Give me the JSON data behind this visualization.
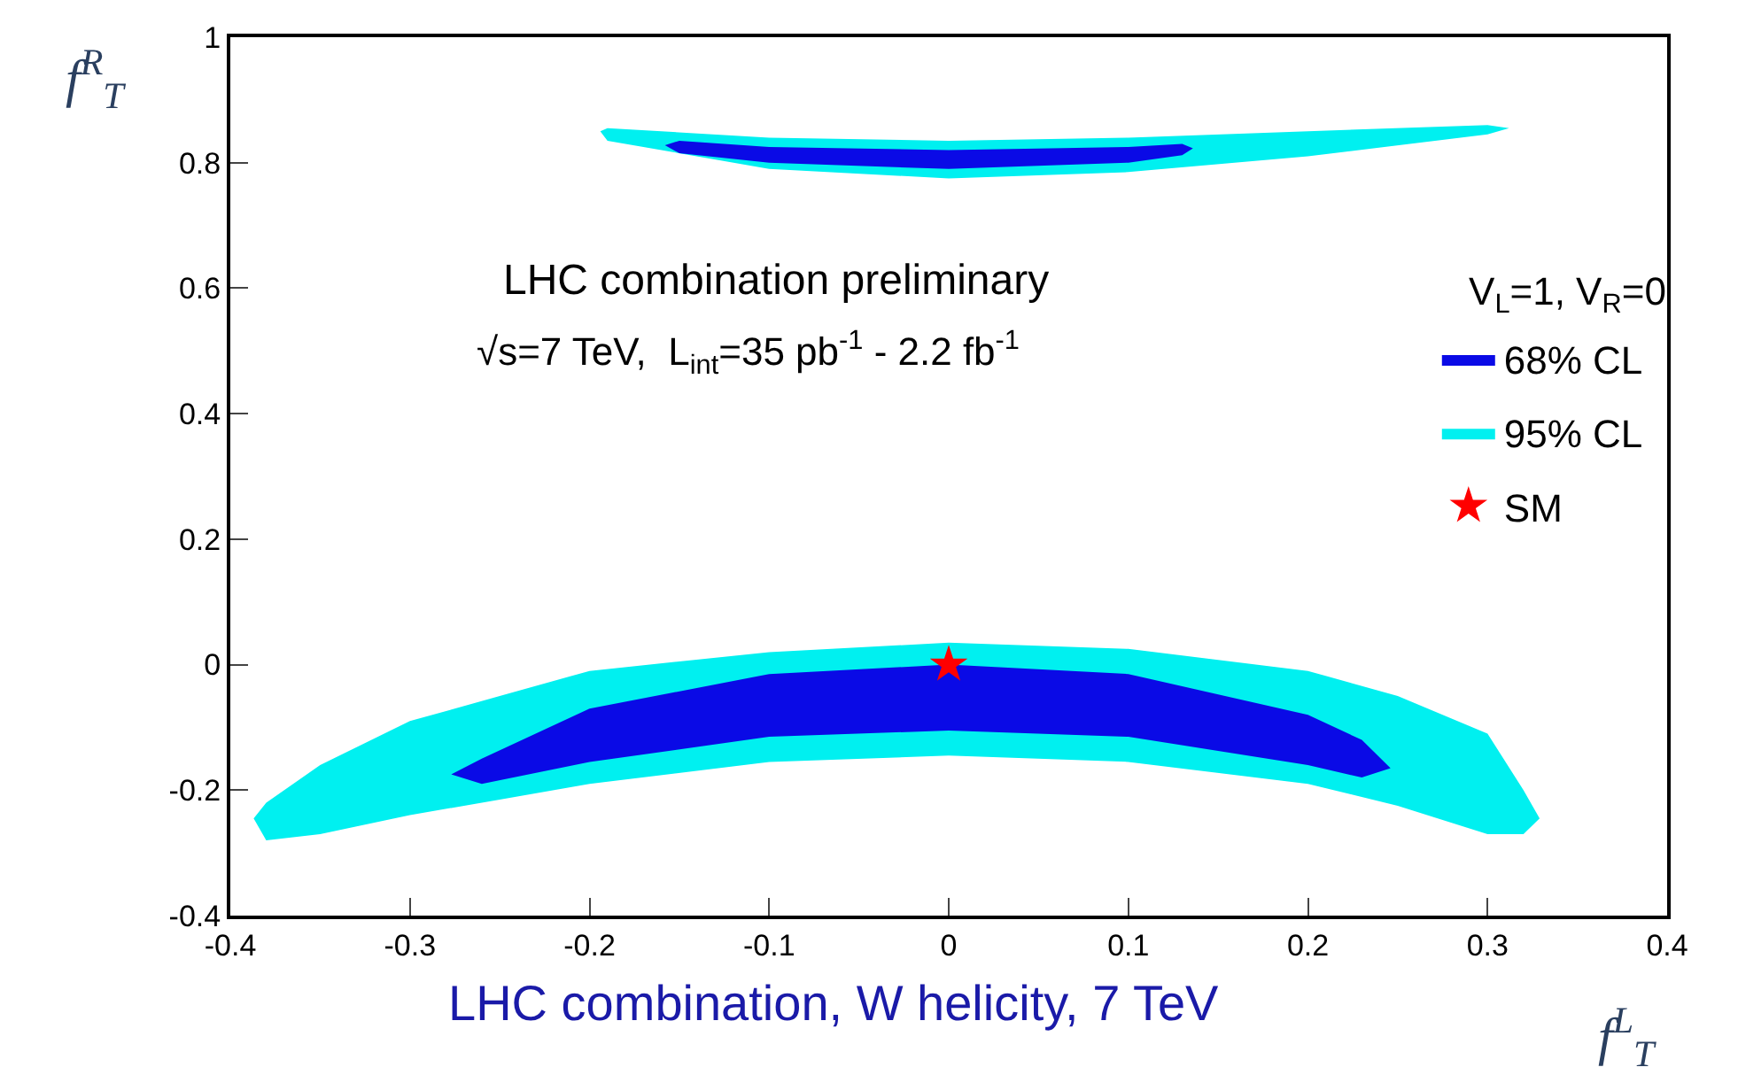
{
  "chart_data": {
    "type": "line",
    "xlabel": "f$^{L}$$_{T}$",
    "ylabel": "f$^{R}$$_{T}$",
    "xlim": [
      -0.4,
      0.4
    ],
    "xticks": [
      -0.4,
      -0.3,
      -0.2,
      -0.1,
      0,
      0.1,
      0.2,
      0.3,
      0.4
    ],
    "ylim": [
      -0.4,
      1
    ],
    "yticks": [
      -0.4,
      -0.2,
      0,
      0.2,
      0.4,
      0.6,
      0.8,
      1
    ],
    "grid": false,
    "legend": "right",
    "annotations": [
      "LHC combination preliminary",
      "√s=7 TeV,  L$_{int}$=35 pb$^{-1}$ - 2.2 fb$^{-1}$",
      "V$_{L}$=1, V$_{R}$=0",
      "LHC combination, W helicity, 7 TeV"
    ],
    "series": [
      {
        "name": "68% CL",
        "color": "#0a0ae6",
        "x": [
          -0.277,
          -0.26,
          -0.2,
          -0.1,
          0,
          0.1,
          0.2,
          0.23,
          0.246,
          null,
          -0.158,
          -0.15,
          -0.1,
          0,
          0.1,
          0.13,
          0.136
        ],
        "values": [
          null,
          null,
          null,
          null,
          null,
          null,
          null,
          null,
          null,
          null,
          null,
          null,
          null,
          null,
          null,
          null,
          null
        ],
        "upper": [
          -0.175,
          -0.15,
          -0.07,
          -0.015,
          0.0,
          -0.015,
          -0.08,
          -0.12,
          -0.165,
          null,
          0.828,
          0.835,
          0.825,
          0.82,
          0.825,
          0.83,
          0.823
        ],
        "lower": [
          -0.175,
          -0.19,
          -0.155,
          -0.115,
          -0.105,
          -0.115,
          -0.16,
          -0.18,
          -0.165,
          null,
          0.828,
          0.815,
          0.8,
          0.79,
          0.8,
          0.812,
          0.823
        ]
      },
      {
        "name": "95% CL",
        "color": "#00f0f0",
        "x": [
          -0.387,
          -0.38,
          -0.35,
          -0.3,
          -0.25,
          -0.2,
          -0.1,
          0,
          0.1,
          0.2,
          0.25,
          0.3,
          0.32,
          0.329,
          null,
          -0.194,
          -0.19,
          -0.1,
          0,
          0.1,
          0.2,
          0.3,
          0.312
        ],
        "values": [
          null,
          null,
          null,
          null,
          null,
          null,
          null,
          null,
          null,
          null,
          null,
          null,
          null,
          null,
          null,
          null,
          null,
          null,
          null,
          null,
          null,
          null,
          null
        ],
        "upper": [
          -0.245,
          -0.22,
          -0.16,
          -0.09,
          -0.05,
          -0.01,
          0.02,
          0.035,
          0.025,
          -0.01,
          -0.05,
          -0.11,
          -0.2,
          -0.245,
          null,
          0.85,
          0.855,
          0.84,
          0.835,
          0.84,
          0.85,
          0.86,
          0.855
        ],
        "lower": [
          -0.245,
          -0.28,
          -0.27,
          -0.24,
          -0.215,
          -0.19,
          -0.155,
          -0.145,
          -0.155,
          -0.19,
          -0.225,
          -0.27,
          -0.27,
          -0.245,
          null,
          0.85,
          0.835,
          0.79,
          0.775,
          0.785,
          0.81,
          0.845,
          0.855
        ]
      },
      {
        "type": "scatter",
        "name": "SM",
        "color": "#ff0000",
        "marker": "star",
        "x": [
          0
        ],
        "values": [
          0
        ]
      }
    ]
  }
}
